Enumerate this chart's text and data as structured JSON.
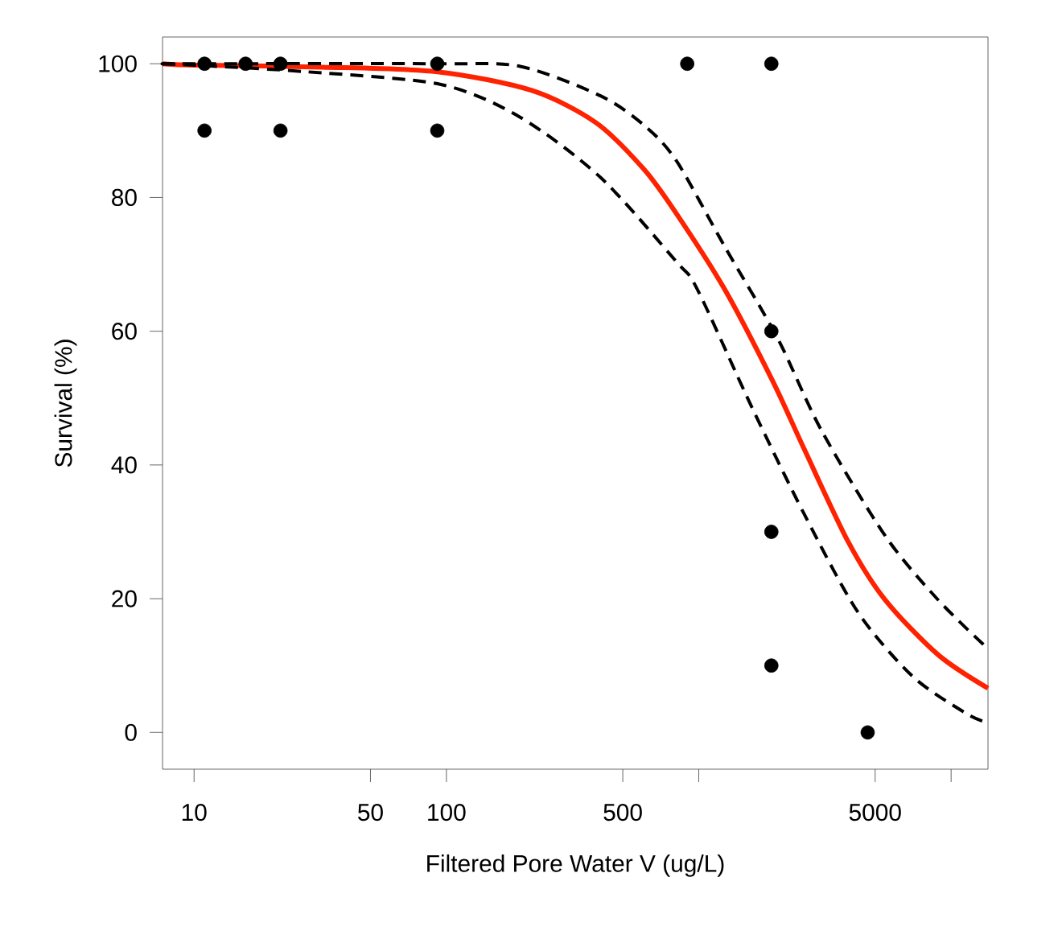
{
  "chart_data": {
    "type": "scatter",
    "xlabel": "Filtered Pore Water V (ug/L)",
    "ylabel": "Survival (%)",
    "log": "x",
    "xlim": [
      7.5,
      14000
    ],
    "ylim": [
      -5.5,
      104
    ],
    "xticks": [
      10,
      50,
      100,
      500,
      {
        "value": 1000,
        "label": null
      },
      5000,
      {
        "value": 10000,
        "label": null
      }
    ],
    "yticks": [
      0,
      20,
      40,
      60,
      80,
      100
    ],
    "series": [
      {
        "color": "#000000",
        "marker": "circle",
        "x": [
          11,
          11,
          16,
          22,
          22,
          92,
          92,
          900,
          1940,
          1940,
          1940,
          1940,
          4670
        ],
        "values": [
          100,
          90,
          100,
          100,
          90,
          100,
          90,
          100,
          100,
          60,
          30,
          10,
          0
        ]
      },
      {
        "type": "line",
        "color": "#ff2200",
        "line_style": "solid",
        "marker": "none",
        "x": [
          7.5,
          10,
          32,
          92,
          218,
          391,
          607,
          815,
          1265,
          1960,
          2630,
          3910,
          5480,
          8890,
          14000
        ],
        "values": [
          100,
          99.8,
          99.5,
          98.8,
          96,
          91.2,
          84.2,
          77.6,
          66.3,
          52.6,
          42.2,
          28.5,
          19.8,
          11.6,
          6.6
        ]
      },
      {
        "type": "line",
        "color": "#000000",
        "line_style": "dashed",
        "marker": "none",
        "x": [
          7.5,
          10,
          92,
          196,
          408,
          607,
          815,
          1265,
          2050,
          3050,
          5480,
          8890,
          14000
        ],
        "values": [
          100,
          100,
          100,
          99.6,
          95.2,
          90.8,
          85.5,
          72.7,
          59,
          45.3,
          29.4,
          19.8,
          12.5
        ]
      },
      {
        "type": "line",
        "color": "#000000",
        "line_style": "dashed",
        "marker": "none",
        "x": [
          7.5,
          10,
          28,
          95,
          196,
          408,
          815,
          986,
          1620,
          2630,
          4270,
          7030,
          11400,
          14000
        ],
        "values": [
          100,
          99.8,
          98.8,
          96.9,
          92,
          83,
          70.4,
          66.3,
          48.7,
          32.5,
          18,
          8.4,
          2.9,
          1.4
        ]
      }
    ]
  }
}
